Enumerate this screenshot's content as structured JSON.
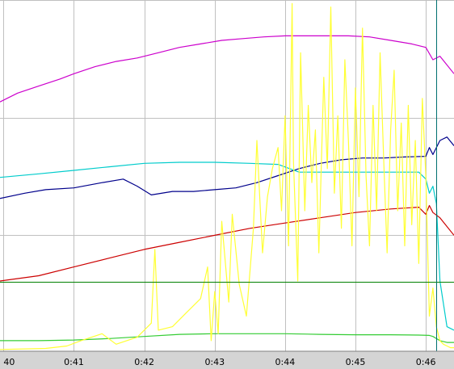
{
  "chart_data": {
    "type": "line",
    "title": "",
    "xlabel": "",
    "ylabel": "",
    "x_range_minutes": [
      39.95,
      46.4
    ],
    "y_range": [
      0,
      100
    ],
    "grid": true,
    "legend": "none",
    "x_ticks": [
      {
        "value": 40,
        "label": "40"
      },
      {
        "value": 41,
        "label": "0:41"
      },
      {
        "value": 42,
        "label": "0:42"
      },
      {
        "value": 43,
        "label": "0:43"
      },
      {
        "value": 44,
        "label": "0:44"
      },
      {
        "value": 45,
        "label": "0:45"
      },
      {
        "value": 46,
        "label": "0:46"
      }
    ],
    "y_grid_values": [
      100,
      66.5,
      33.2
    ],
    "horizontal_markers": [
      {
        "color": "#008000",
        "y": 19.8
      }
    ],
    "vertical_markers": [
      {
        "color": "#007070",
        "x": 46.15
      }
    ],
    "series": [
      {
        "color": "#cc00cc",
        "x": [
          39.95,
          40.2,
          40.5,
          40.8,
          41.0,
          41.3,
          41.6,
          41.9,
          42.2,
          42.5,
          42.8,
          43.1,
          43.4,
          43.7,
          44.0,
          44.3,
          44.6,
          44.9,
          45.2,
          45.5,
          45.8,
          46.0,
          46.1,
          46.2,
          46.4
        ],
        "y": [
          71,
          73.5,
          75.5,
          77.5,
          79,
          81,
          82.5,
          83.5,
          85,
          86.5,
          87.5,
          88.5,
          89,
          89.5,
          89.8,
          89.8,
          89.8,
          89.8,
          89.5,
          88.5,
          87.5,
          86.5,
          83,
          84,
          79
        ]
      },
      {
        "color": "#00008b",
        "x": [
          39.95,
          40.3,
          40.6,
          41.0,
          41.4,
          41.7,
          41.9,
          42.1,
          42.4,
          42.7,
          43.0,
          43.3,
          43.6,
          43.9,
          44.2,
          44.5,
          44.8,
          45.1,
          45.4,
          45.7,
          46.0,
          46.05,
          46.1,
          46.2,
          46.3,
          46.4
        ],
        "y": [
          43.5,
          45,
          46,
          46.5,
          48,
          49,
          47,
          44.5,
          45.5,
          45.5,
          46,
          46.5,
          48,
          50,
          52,
          53.5,
          54.5,
          55,
          55,
          55.3,
          55.5,
          58,
          56,
          60,
          61,
          58.5
        ]
      },
      {
        "color": "#00cccc",
        "x": [
          39.95,
          40.5,
          41.0,
          41.5,
          42.0,
          42.5,
          43.0,
          43.5,
          43.9,
          44.2,
          44.6,
          45.0,
          45.5,
          45.9,
          46.0,
          46.05,
          46.1,
          46.15,
          46.2,
          46.3,
          46.4
        ],
        "y": [
          49.5,
          50.5,
          51.5,
          52.5,
          53.5,
          53.8,
          53.8,
          53.5,
          53.2,
          51,
          51,
          51,
          51,
          51,
          49,
          45,
          47,
          42,
          20,
          7,
          6
        ]
      },
      {
        "color": "#cc0000",
        "x": [
          39.95,
          40.5,
          41.0,
          41.5,
          42.0,
          42.5,
          43.0,
          43.5,
          44.0,
          44.5,
          45.0,
          45.5,
          45.9,
          46.0,
          46.05,
          46.1,
          46.2,
          46.4
        ],
        "y": [
          20,
          21.5,
          24,
          26.5,
          29,
          31,
          33,
          35,
          36.5,
          38,
          39.5,
          40.5,
          41,
          39,
          41.5,
          39.5,
          38,
          33
        ]
      },
      {
        "color": "#33cc33",
        "x": [
          39.95,
          40.5,
          41.0,
          41.5,
          42.0,
          42.5,
          43.0,
          43.5,
          44.0,
          44.5,
          45.0,
          45.5,
          45.9,
          46.05,
          46.1,
          46.2,
          46.3,
          46.4
        ],
        "y": [
          3,
          3,
          3.2,
          3.6,
          4.2,
          4.8,
          5,
          5,
          5,
          4.8,
          4.7,
          4.7,
          4.6,
          4.5,
          4.2,
          3,
          2.5,
          2.5
        ]
      },
      {
        "color": "#ffff33",
        "x": [
          39.95,
          40.6,
          40.9,
          41.1,
          41.4,
          41.6,
          41.9,
          42.1,
          42.15,
          42.2,
          42.4,
          42.6,
          42.8,
          42.9,
          42.95,
          43.0,
          43.05,
          43.1,
          43.2,
          43.25,
          43.35,
          43.45,
          43.55,
          43.6,
          43.68,
          43.75,
          43.82,
          43.9,
          43.95,
          44.0,
          44.05,
          44.1,
          44.12,
          44.18,
          44.22,
          44.28,
          44.33,
          44.38,
          44.43,
          44.48,
          44.55,
          44.6,
          44.65,
          44.7,
          44.75,
          44.8,
          44.85,
          44.9,
          44.95,
          45.0,
          45.05,
          45.1,
          45.15,
          45.2,
          45.25,
          45.3,
          45.35,
          45.4,
          45.45,
          45.5,
          45.55,
          45.6,
          45.65,
          45.7,
          45.75,
          45.8,
          45.85,
          45.9,
          45.95,
          46.0,
          46.05,
          46.1,
          46.15,
          46.2,
          46.25,
          46.3,
          46.35,
          46.4
        ],
        "y": [
          0.5,
          0.8,
          1.5,
          3,
          5,
          2,
          4,
          8,
          29,
          6,
          7,
          11,
          15,
          24,
          3,
          17,
          5,
          37,
          14,
          39,
          19,
          10,
          35,
          60,
          28,
          44,
          52,
          58,
          40,
          67,
          30,
          99,
          54,
          20,
          85,
          40,
          70,
          48,
          63,
          28,
          78,
          52,
          98,
          45,
          67,
          35,
          83,
          60,
          30,
          75,
          44,
          92,
          50,
          30,
          70,
          40,
          85,
          55,
          28,
          63,
          80,
          40,
          65,
          30,
          70,
          36,
          60,
          25,
          72,
          50,
          10,
          18,
          7,
          3,
          2,
          1.5,
          1,
          1
        ]
      }
    ]
  }
}
